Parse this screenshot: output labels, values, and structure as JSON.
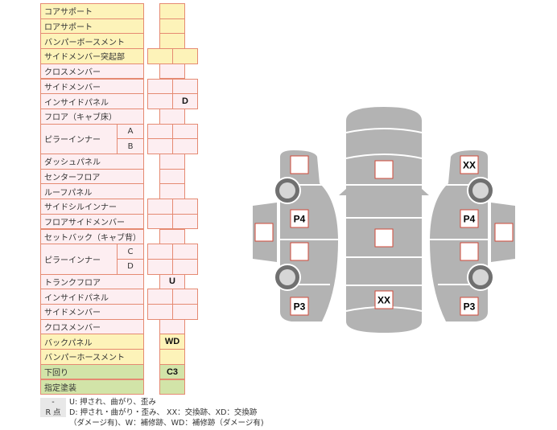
{
  "colors": {
    "yellow": "#fdf3b9",
    "pink": "#fdeef1",
    "green": "#d2e4a8",
    "border": "#e58a72",
    "car": "#b3b3b3"
  },
  "rows": [
    {
      "label": "コアサポート",
      "color": "yellow",
      "cols": 1,
      "values": [
        ""
      ]
    },
    {
      "label": "ロアサポート",
      "color": "yellow",
      "cols": 1,
      "values": [
        ""
      ]
    },
    {
      "label": "バンパーボースメント",
      "color": "yellow",
      "cols": 1,
      "values": [
        ""
      ]
    },
    {
      "label": "サイドメンバー突起部",
      "color": "yellow",
      "cols": 2,
      "values": [
        "",
        ""
      ]
    },
    {
      "label": "クロスメンバー",
      "color": "pink",
      "cols": 1,
      "values": [
        ""
      ]
    },
    {
      "label": "サイドメンバー",
      "color": "pink",
      "cols": 2,
      "values": [
        "",
        ""
      ]
    },
    {
      "label": "インサイドパネル",
      "color": "pink",
      "cols": 2,
      "values": [
        "",
        "D"
      ]
    },
    {
      "label": "フロア（キャブ床）",
      "color": "pink",
      "cols": 1,
      "values": [
        ""
      ]
    },
    {
      "label": "ピラーインナー",
      "color": "pink",
      "cols": 2,
      "subs": [
        "A",
        "B"
      ],
      "values": [
        [
          "",
          ""
        ],
        [
          "",
          ""
        ]
      ]
    },
    {
      "label": "ダッシュパネル",
      "color": "pink",
      "cols": 1,
      "values": [
        ""
      ]
    },
    {
      "label": "センターフロア",
      "color": "pink",
      "cols": 1,
      "values": [
        ""
      ]
    },
    {
      "label": "ルーフパネル",
      "color": "pink",
      "cols": 1,
      "values": [
        ""
      ]
    },
    {
      "label": "サイドシルインナー",
      "color": "pink",
      "cols": 2,
      "values": [
        "",
        ""
      ]
    },
    {
      "label": "フロアサイドメンバー",
      "color": "pink",
      "cols": 2,
      "values": [
        "",
        ""
      ]
    },
    {
      "label": "セットバック（キャブ背）",
      "color": "pink",
      "cols": 1,
      "values": [
        ""
      ]
    },
    {
      "label": "ピラーインナー",
      "color": "pink",
      "cols": 2,
      "subs": [
        "C",
        "D"
      ],
      "values": [
        [
          "",
          ""
        ],
        [
          "",
          ""
        ]
      ]
    },
    {
      "label": "トランクフロア",
      "color": "pink",
      "cols": 1,
      "values": [
        "U"
      ]
    },
    {
      "label": "インサイドパネル",
      "color": "pink",
      "cols": 2,
      "values": [
        "",
        ""
      ]
    },
    {
      "label": "サイドメンバー",
      "color": "pink",
      "cols": 2,
      "values": [
        "",
        ""
      ]
    },
    {
      "label": "クロスメンバー",
      "color": "pink",
      "cols": 1,
      "values": [
        ""
      ]
    },
    {
      "label": "バックパネル",
      "color": "yellow",
      "cols": 1,
      "values": [
        "WD"
      ]
    },
    {
      "label": "バンパーホースメント",
      "color": "yellow",
      "cols": 1,
      "values": [
        ""
      ]
    },
    {
      "label": "下回り",
      "color": "green",
      "cols": 1,
      "values": [
        "C3"
      ]
    },
    {
      "label": "指定塗装",
      "color": "green",
      "cols": 1,
      "values": [
        ""
      ]
    }
  ],
  "legend": [
    {
      "key": "-",
      "text": "U: 押され、曲がり、歪み"
    },
    {
      "key": "R 点",
      "text": "D: 押され・曲がり・歪み、 XX：交換跡、XD：交換跡"
    },
    {
      "key": "",
      "text": "（ダメージ有)、W：補修跡、WD：補修跡（ダメージ有)"
    }
  ],
  "car": {
    "left": [
      "",
      "P4",
      "",
      "P3"
    ],
    "left_door": "",
    "center": [
      "",
      "",
      "XX"
    ],
    "right": [
      "XX",
      "P4",
      "",
      "P3"
    ],
    "right_door": ""
  }
}
